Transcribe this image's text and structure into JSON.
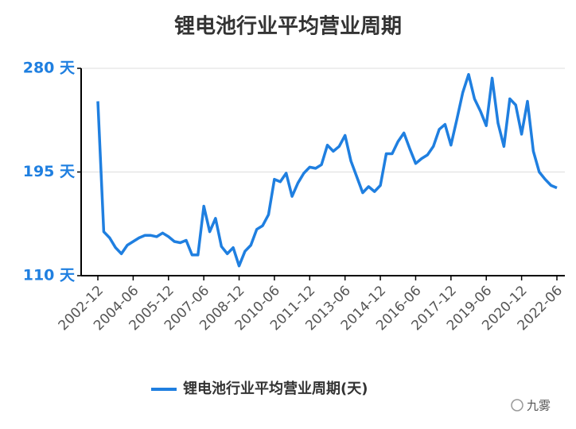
{
  "chart_data": {
    "type": "line",
    "title": "锂电池行业平均营业周期",
    "categories": [
      "2002-12",
      null,
      null,
      null,
      null,
      null,
      "2004-06",
      null,
      null,
      null,
      null,
      null,
      "2005-12",
      null,
      null,
      null,
      null,
      null,
      "2007-06",
      null,
      null,
      null,
      null,
      null,
      "2008-12",
      null,
      null,
      null,
      null,
      null,
      "2010-06",
      null,
      null,
      null,
      null,
      null,
      "2011-12",
      null,
      null,
      null,
      null,
      null,
      "2013-06",
      null,
      null,
      null,
      null,
      null,
      "2014-12",
      null,
      null,
      null,
      null,
      null,
      "2016-06",
      null,
      null,
      null,
      null,
      null,
      "2017-12",
      null,
      null,
      null,
      null,
      null,
      "2019-06",
      null,
      null,
      null,
      null,
      null,
      "2020-12",
      null,
      null,
      null,
      null,
      null,
      "2022-06"
    ],
    "series": [
      {
        "name": "锂电池行业平均营业周期(天)",
        "color": "#1f7fe0",
        "values": [
          253,
          146,
          141,
          133,
          128,
          135,
          138,
          141,
          143,
          143,
          142,
          145,
          142,
          138,
          137,
          139,
          127,
          127,
          167,
          146,
          157,
          134,
          128,
          133,
          118,
          130,
          135,
          148,
          151,
          160,
          189,
          187,
          194,
          175,
          186,
          194,
          199,
          198,
          201,
          217,
          212,
          216,
          225,
          204,
          191,
          178,
          183,
          179,
          184,
          210,
          210,
          220,
          227,
          214,
          202,
          206,
          209,
          216,
          230,
          234,
          217,
          238,
          260,
          275,
          255,
          245,
          233,
          272,
          235,
          216,
          255,
          250,
          226,
          253,
          212,
          195,
          189,
          184,
          182
        ]
      }
    ],
    "ylim": [
      110,
      280
    ],
    "yticks": [
      {
        "value": 110,
        "label": "110 天"
      },
      {
        "value": 195,
        "label": "195 天"
      },
      {
        "value": 280,
        "label": "280 天"
      }
    ],
    "grid": true
  },
  "watermark": "九雾"
}
